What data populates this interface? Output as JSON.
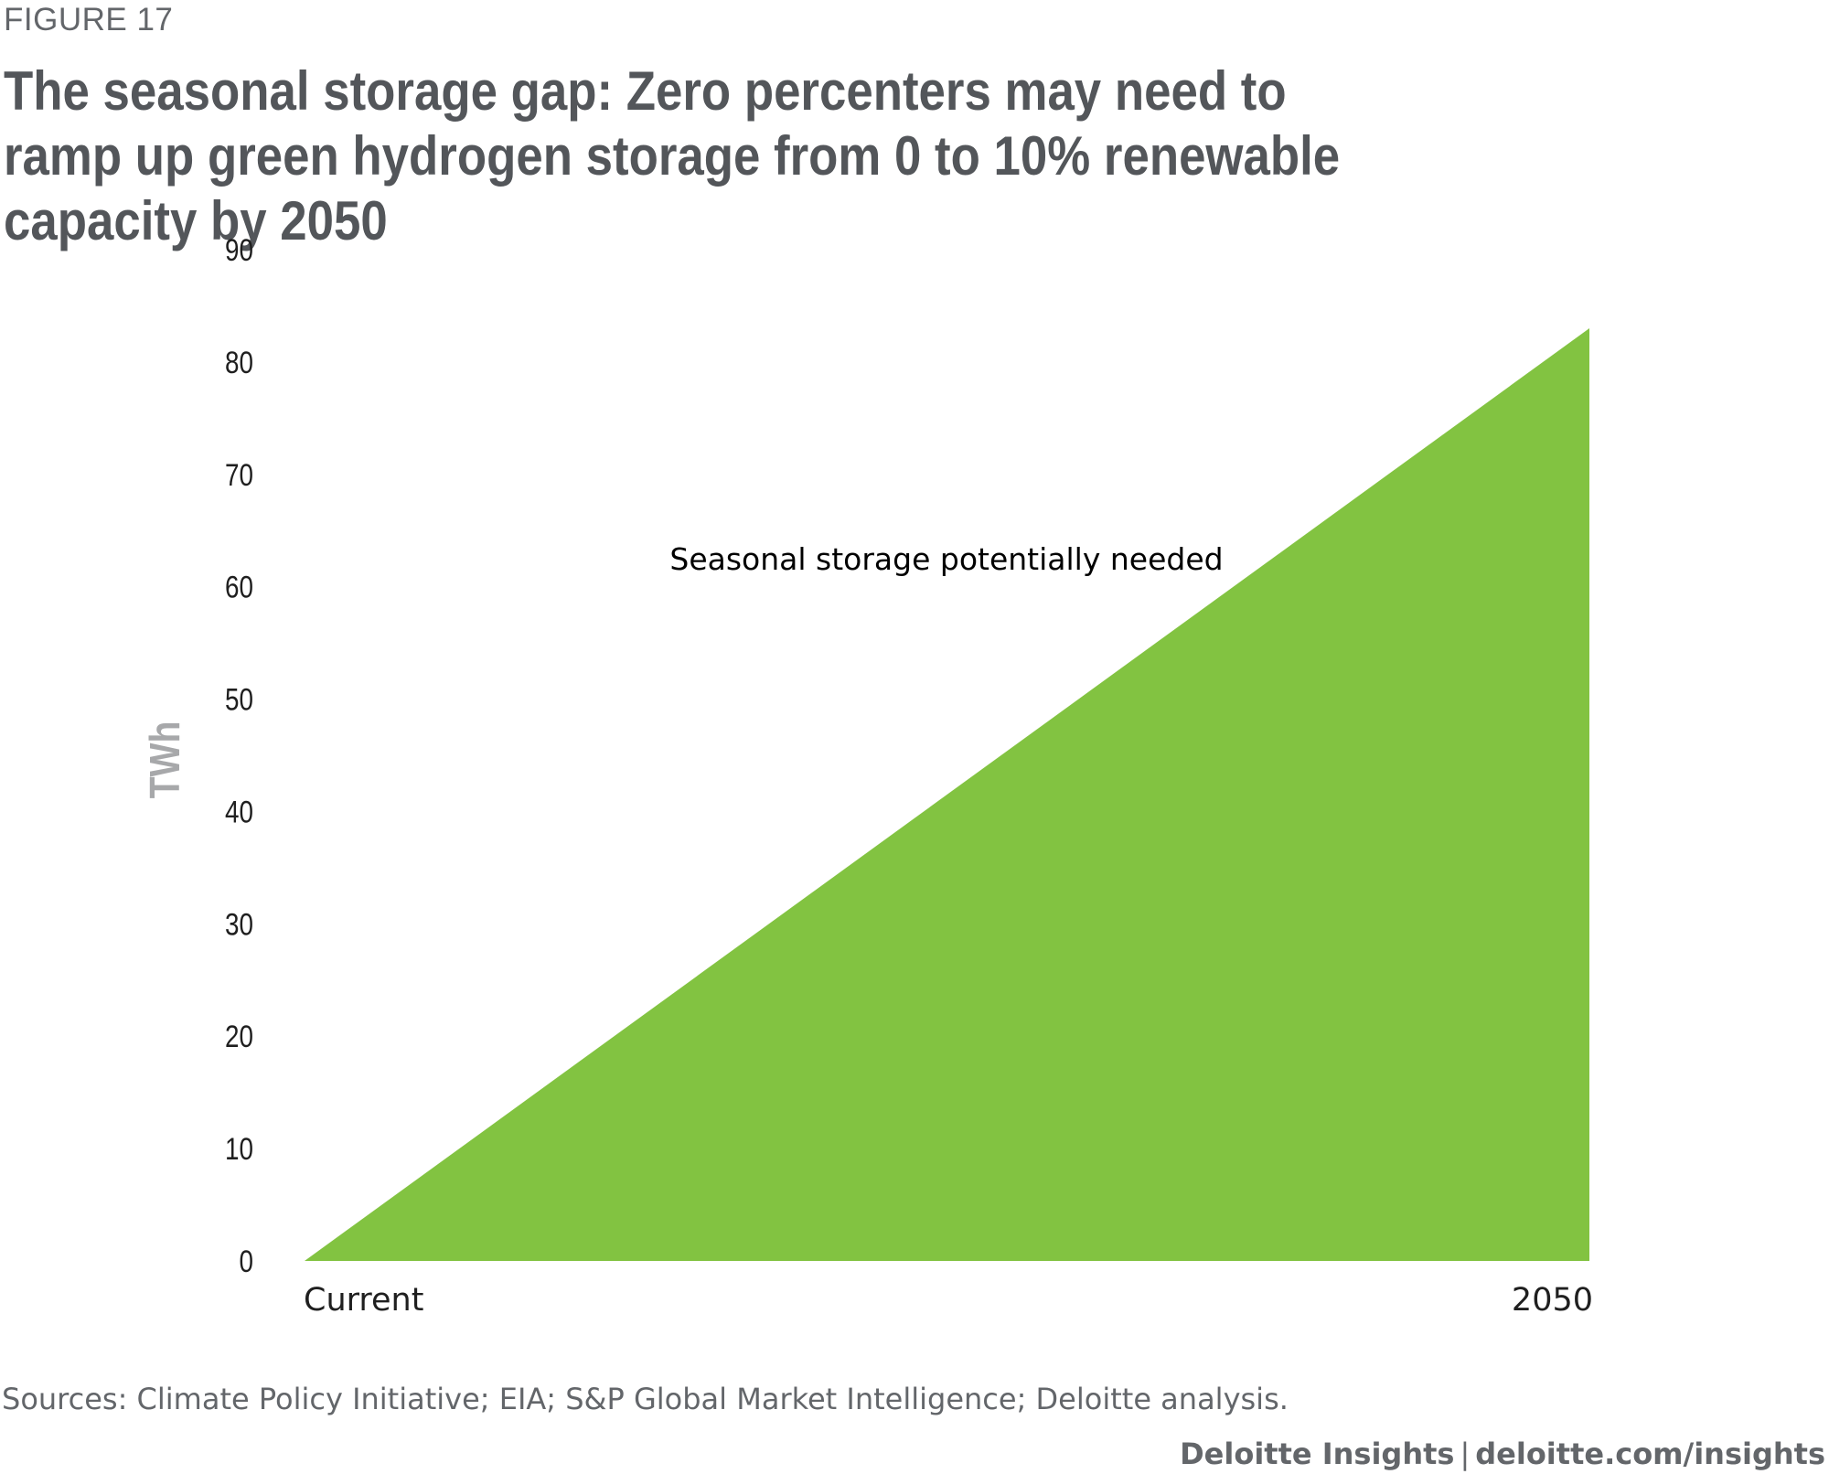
{
  "figure_label": "FIGURE 17",
  "chart_data": {
    "type": "area",
    "title": "The seasonal storage gap: Zero percenters may need to ramp up green hydrogen storage from 0 to 10% renewable capacity by 2050",
    "xlabel": "",
    "ylabel": "TWh",
    "categories": [
      "Current",
      "2050"
    ],
    "series": [
      {
        "values": [
          0,
          83
        ],
        "color": "#82c341"
      }
    ],
    "ylim": [
      0,
      90
    ],
    "yticks": [
      0,
      10,
      20,
      30,
      40,
      50,
      60,
      70,
      80,
      90
    ],
    "annotation": "Seasonal storage potentially needed",
    "grid": false,
    "legend": "none"
  },
  "source": "Sources: Climate Policy Initiative; EIA; S&P Global Market Intelligence; Deloitte analysis.",
  "footer": {
    "brand": "Deloitte Insights",
    "separator": "|",
    "url": "deloitte.com/insights"
  }
}
